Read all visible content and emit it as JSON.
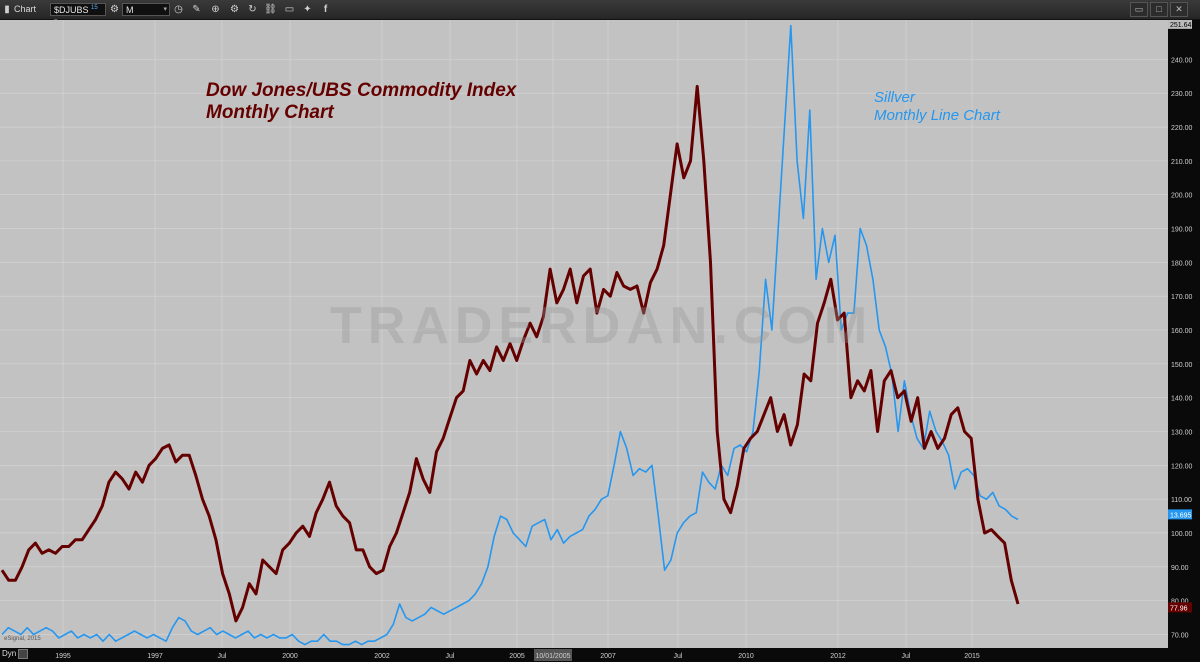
{
  "toolbar": {
    "chart_label": "Chart",
    "symbol": "$DJUBS",
    "symbol_sup": "15",
    "interval": "M",
    "icons": [
      "clock-icon",
      "pencil-icon",
      "crosshair-icon",
      "settings-icon",
      "refresh-icon",
      "link-icon",
      "pin-icon",
      "twitter-icon",
      "facebook-icon"
    ]
  },
  "titles": {
    "djubs_line1": "Dow Jones/UBS Commodity Index",
    "djubs_line2": "Monthly Chart",
    "silver_line1": "Sillver",
    "silver_line2": "Monthly Line Chart"
  },
  "watermark": "TRADERDAN.COM",
  "colors": {
    "djubs": "#650000",
    "silver": "#2597f0",
    "background": "#c2c2c2",
    "grid": "#d6d6d6"
  },
  "footer": {
    "dyn": "Dyn",
    "copyright": "eSignal, 2015",
    "highlight_date": "10/01/2005"
  },
  "chart_data": {
    "type": "line",
    "x_tick_labels": [
      "1995",
      "1997",
      "Jul",
      "2000",
      "2002",
      "Jul",
      "2005",
      "10/01/2005",
      "2007",
      "Jul",
      "2010",
      "2012",
      "Jul",
      "2015"
    ],
    "y_tick_labels": [
      "70.00",
      "80.00",
      "90.00",
      "100.00",
      "110.00",
      "120.00",
      "130.00",
      "140.00",
      "150.00",
      "160.00",
      "170.00",
      "180.00",
      "190.00",
      "200.00",
      "210.00",
      "220.00",
      "230.00",
      "240.00"
    ],
    "ylim": [
      66,
      251.64
    ],
    "y_ticks": [
      70,
      80,
      90,
      100,
      110,
      120,
      130,
      140,
      150,
      160,
      170,
      180,
      190,
      200,
      210,
      220,
      230,
      240
    ],
    "last_values": {
      "top": "251.64",
      "silver": "13.695",
      "djubs": "77.96"
    },
    "series": [
      {
        "values": [
          89,
          86,
          86,
          90,
          95,
          97,
          94,
          95,
          94,
          96,
          96,
          98,
          98,
          101,
          104,
          108,
          115,
          118,
          116,
          113,
          118,
          115,
          120,
          122,
          125,
          126,
          121,
          123,
          123,
          117,
          110,
          105,
          98,
          88,
          82,
          74,
          78,
          85,
          82,
          92,
          90,
          88,
          95,
          97,
          100,
          102,
          99,
          106,
          110,
          115,
          108,
          105,
          103,
          95,
          95,
          90,
          88,
          89,
          96,
          100,
          106,
          112,
          122,
          116,
          112,
          124,
          128,
          134,
          140,
          142,
          151,
          147,
          151,
          148,
          155,
          151,
          156,
          151,
          157,
          162,
          158,
          164,
          178,
          168,
          172,
          178,
          168,
          176,
          178,
          165,
          172,
          170,
          177,
          173,
          172,
          173,
          165,
          174,
          178,
          185,
          200,
          215,
          205,
          210,
          232,
          210,
          180,
          130,
          110,
          106,
          114,
          125,
          128,
          130,
          135,
          140,
          130,
          135,
          126,
          132,
          147,
          145,
          162,
          168,
          175,
          163,
          165,
          140,
          145,
          142,
          148,
          130,
          145,
          148,
          140,
          142,
          133,
          140,
          125,
          130,
          125,
          128,
          135,
          137,
          130,
          128,
          110,
          100,
          101,
          99,
          97,
          86,
          79
        ]
      },
      {
        "values": [
          70,
          72,
          71,
          70,
          72,
          70,
          71,
          72,
          71,
          69,
          70,
          71,
          69,
          70,
          69,
          70,
          68,
          70,
          68,
          69,
          70,
          71,
          70,
          69,
          70,
          69,
          68,
          72,
          75,
          74,
          71,
          70,
          71,
          72,
          70,
          71,
          70,
          69,
          70,
          71,
          69,
          70,
          69,
          70,
          69,
          69,
          70,
          68,
          67,
          68,
          68,
          70,
          68,
          68,
          67,
          67,
          68,
          67,
          68,
          68,
          69,
          70,
          73,
          79,
          75,
          74,
          75,
          76,
          78,
          77,
          76,
          77,
          78,
          79,
          80,
          82,
          85,
          90,
          99,
          105,
          104,
          100,
          98,
          96,
          102,
          103,
          104,
          98,
          101,
          97,
          99,
          100,
          101,
          105,
          107,
          110,
          111,
          120,
          130,
          125,
          117,
          119,
          118,
          120,
          105,
          89,
          92,
          100,
          103,
          105,
          106,
          118,
          115,
          113,
          120,
          117,
          125,
          126,
          124,
          130,
          148,
          175,
          160,
          190,
          220,
          250,
          210,
          193,
          225,
          175,
          190,
          180,
          188,
          160,
          165,
          165,
          190,
          185,
          175,
          160,
          155,
          147,
          130,
          145,
          135,
          128,
          125,
          136,
          130,
          127,
          123,
          113,
          118,
          119,
          117,
          111,
          110,
          112,
          108,
          107,
          105,
          104
        ]
      }
    ]
  }
}
